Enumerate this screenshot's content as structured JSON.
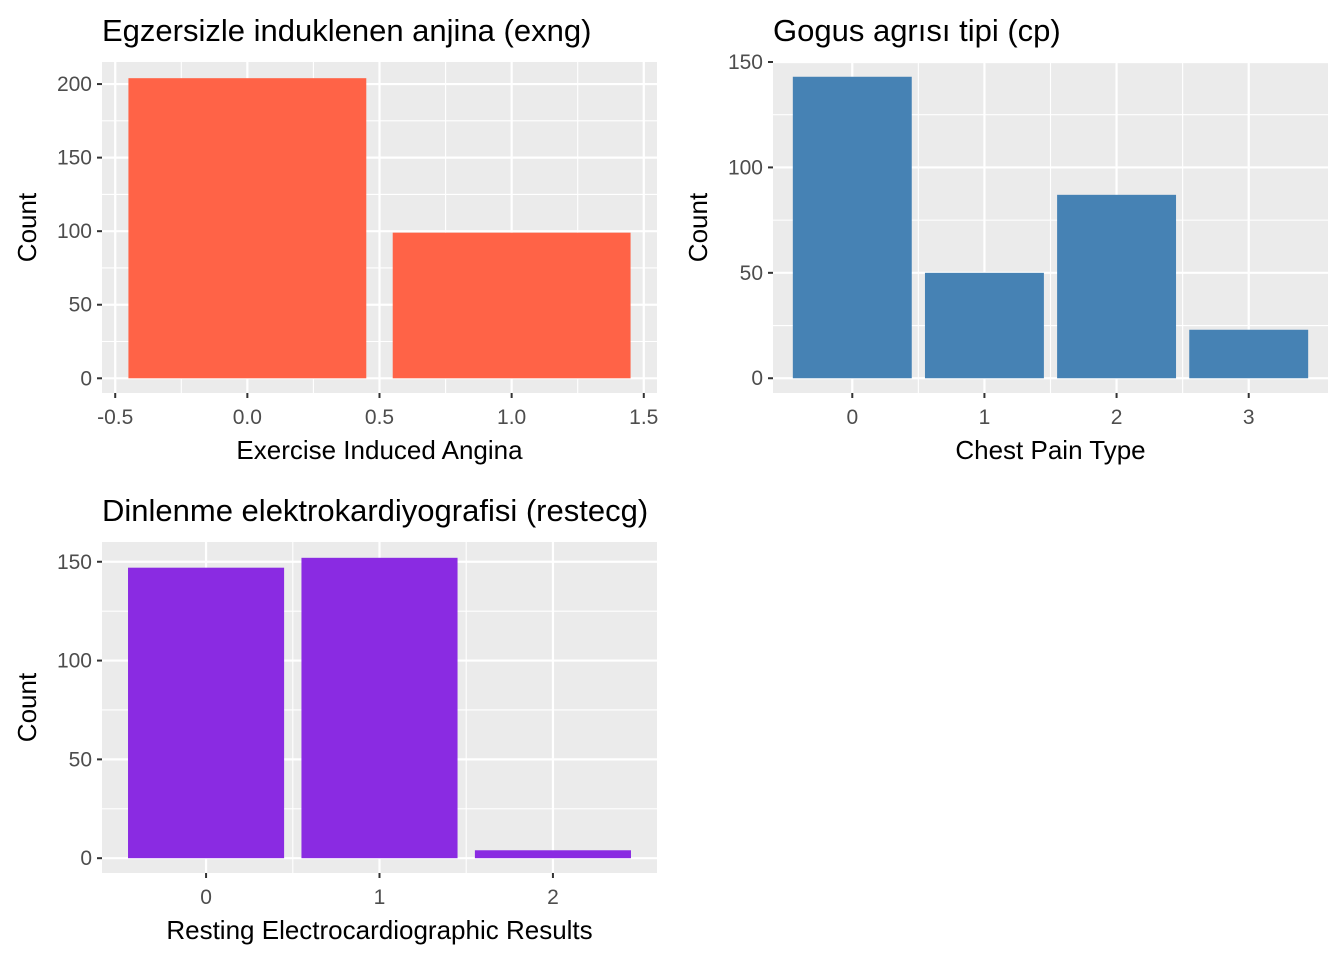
{
  "chart_data": [
    {
      "type": "bar",
      "title": "Egzersizle induklenen anjina (exng)",
      "xlabel": "Exercise Induced Angina",
      "ylabel": "Count",
      "x_axis_kind": "continuous",
      "xlim": [
        -0.55,
        1.55
      ],
      "x_ticks": [
        "-0.5",
        "0.0",
        "0.5",
        "1.0",
        "1.5"
      ],
      "x_tick_values": [
        -0.5,
        0.0,
        0.5,
        1.0,
        1.5
      ],
      "ylim": [
        -10,
        215
      ],
      "y_ticks": [
        0,
        50,
        100,
        150,
        200
      ],
      "bars": [
        {
          "x": 0,
          "value": 204
        },
        {
          "x": 1,
          "value": 99
        }
      ],
      "bar_color": "#FF6347",
      "grid": true
    },
    {
      "type": "bar",
      "title": "Gogus agrısı tipi (cp)",
      "xlabel": "Chest Pain Type",
      "ylabel": "Count",
      "x_axis_kind": "discrete",
      "categories": [
        "0",
        "1",
        "2",
        "3"
      ],
      "values": [
        143,
        50,
        87,
        23
      ],
      "ylim": [
        -7,
        150
      ],
      "y_ticks": [
        0,
        50,
        100,
        150
      ],
      "bar_color": "#4682B4",
      "grid": true
    },
    {
      "type": "bar",
      "title": "Dinlenme elektrokardiyografisi (restecg)",
      "xlabel": "Resting Electrocardiographic Results",
      "ylabel": "Count",
      "x_axis_kind": "discrete",
      "categories": [
        "0",
        "1",
        "2"
      ],
      "values": [
        147,
        152,
        4
      ],
      "ylim": [
        -7.5,
        160
      ],
      "y_ticks": [
        0,
        50,
        100,
        150
      ],
      "bar_color": "#8A2BE2",
      "grid": true
    }
  ]
}
